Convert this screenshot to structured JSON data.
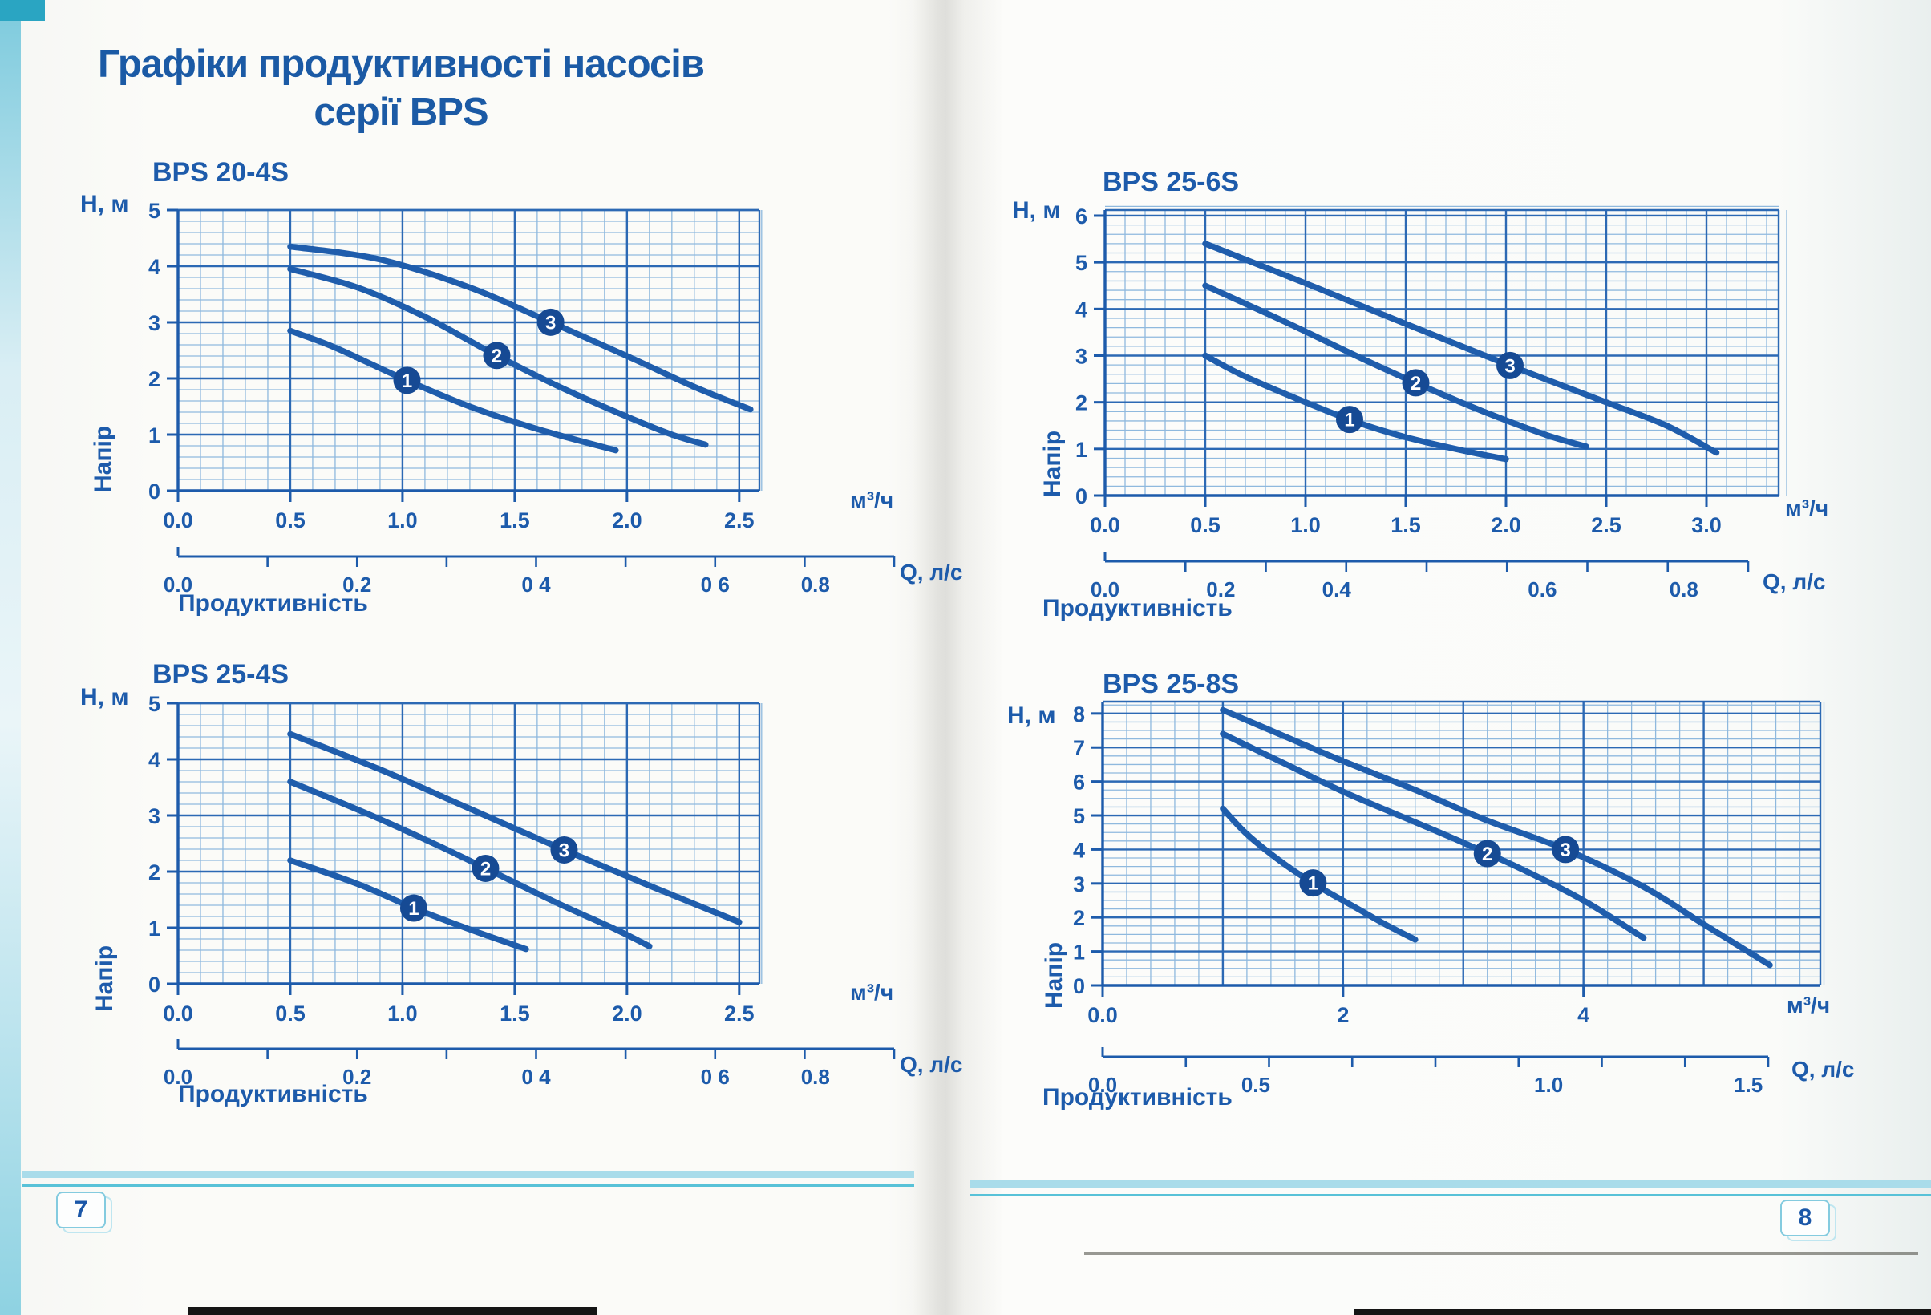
{
  "page": {
    "title_line1": "Графіки продуктивності насосів",
    "title_line2": "серії BPS",
    "left_page_number": "7",
    "right_page_number": "8"
  },
  "colors": {
    "ink_blue": "#1d5bab",
    "title_blue": "#1b5aa5",
    "curve_blue": "#1f5dac",
    "bubble_blue": "#164a94",
    "grid_minor": "#8fb9de",
    "grid_major": "#2c69b4",
    "footer_cyan": "#a9dcea",
    "footer_cyan_dark": "#58c2d8"
  },
  "chart_data": [
    {
      "type": "line",
      "title": "BPS 20-4S",
      "y_axis_label": "H, м",
      "y_axis_name": "Напір",
      "x_axis_name": "Продуктивність",
      "x_unit_label": "м³/ч",
      "q_axis_label": "Q, л/с",
      "xlim": [
        0,
        2.6
      ],
      "ylim": [
        0,
        5
      ],
      "x_tick_values": [
        0,
        0.5,
        1,
        1.5,
        2,
        2.5
      ],
      "x_tick_labels": [
        "0.0",
        "0.5",
        "1.0",
        "1.5",
        "2.0",
        "2.5"
      ],
      "y_tick_values": [
        0,
        1,
        2,
        3,
        4,
        5
      ],
      "q_tick_labels": [
        "0.0",
        "0.2",
        "0 4",
        "0 6",
        "0.8"
      ],
      "series": [
        {
          "name": "1",
          "label_x": 1.02,
          "points": [
            [
              0.5,
              2.85
            ],
            [
              0.7,
              2.55
            ],
            [
              1.0,
              2.0
            ],
            [
              1.3,
              1.5
            ],
            [
              1.6,
              1.1
            ],
            [
              1.95,
              0.72
            ]
          ]
        },
        {
          "name": "2",
          "label_x": 1.42,
          "points": [
            [
              0.5,
              3.95
            ],
            [
              0.8,
              3.62
            ],
            [
              1.1,
              3.1
            ],
            [
              1.4,
              2.45
            ],
            [
              1.7,
              1.85
            ],
            [
              2.0,
              1.32
            ],
            [
              2.2,
              1.0
            ],
            [
              2.35,
              0.82
            ]
          ]
        },
        {
          "name": "3",
          "label_x": 1.66,
          "points": [
            [
              0.5,
              4.35
            ],
            [
              0.9,
              4.12
            ],
            [
              1.3,
              3.62
            ],
            [
              1.65,
              3.02
            ],
            [
              2.0,
              2.4
            ],
            [
              2.3,
              1.85
            ],
            [
              2.55,
              1.45
            ]
          ]
        }
      ]
    },
    {
      "type": "line",
      "title": "BPS 25-6S",
      "y_axis_label": "H, м",
      "y_axis_name": "Напір",
      "x_axis_name": "Продуктивність",
      "x_unit_label": "м³/ч",
      "q_axis_label": "Q, л/с",
      "xlim": [
        0,
        3.4
      ],
      "ylim": [
        0,
        6
      ],
      "x_tick_values": [
        0,
        0.5,
        1,
        1.5,
        2,
        2.5,
        3
      ],
      "x_tick_labels": [
        "0.0",
        "0.5",
        "1.0",
        "1.5",
        "2.0",
        "2.5",
        "3.0"
      ],
      "y_tick_values": [
        0,
        1,
        2,
        3,
        4,
        5,
        6
      ],
      "q_tick_labels": [
        "0.0",
        "0.2",
        "0.4",
        "0.6",
        "0.8"
      ],
      "series": [
        {
          "name": "1",
          "label_x": 1.22,
          "points": [
            [
              0.5,
              3.0
            ],
            [
              0.7,
              2.55
            ],
            [
              1.0,
              2.0
            ],
            [
              1.25,
              1.58
            ],
            [
              1.5,
              1.25
            ],
            [
              1.8,
              0.95
            ],
            [
              2.0,
              0.78
            ]
          ]
        },
        {
          "name": "2",
          "label_x": 1.55,
          "points": [
            [
              0.5,
              4.5
            ],
            [
              0.9,
              3.72
            ],
            [
              1.3,
              2.9
            ],
            [
              1.6,
              2.32
            ],
            [
              1.9,
              1.78
            ],
            [
              2.2,
              1.3
            ],
            [
              2.4,
              1.05
            ]
          ]
        },
        {
          "name": "3",
          "label_x": 2.02,
          "points": [
            [
              0.5,
              5.4
            ],
            [
              1.0,
              4.55
            ],
            [
              1.5,
              3.68
            ],
            [
              2.0,
              2.82
            ],
            [
              2.5,
              2.0
            ],
            [
              2.8,
              1.5
            ],
            [
              3.05,
              0.92
            ]
          ]
        }
      ]
    },
    {
      "type": "line",
      "title": "BPS 25-4S",
      "y_axis_label": "H, м",
      "y_axis_name": "Напір",
      "x_axis_name": "Продуктивність",
      "x_unit_label": "м³/ч",
      "q_axis_label": "Q, л/с",
      "xlim": [
        0,
        2.6
      ],
      "ylim": [
        0,
        5
      ],
      "x_tick_values": [
        0,
        0.5,
        1,
        1.5,
        2,
        2.5
      ],
      "x_tick_labels": [
        "0.0",
        "0.5",
        "1.0",
        "1.5",
        "2.0",
        "2.5"
      ],
      "y_tick_values": [
        0,
        1,
        2,
        3,
        4,
        5
      ],
      "q_tick_labels": [
        "0.0",
        "0.2",
        "0 4",
        "0 6",
        "0.8"
      ],
      "series": [
        {
          "name": "1",
          "label_x": 1.05,
          "points": [
            [
              0.5,
              2.2
            ],
            [
              0.8,
              1.78
            ],
            [
              1.05,
              1.35
            ],
            [
              1.3,
              0.97
            ],
            [
              1.55,
              0.62
            ]
          ]
        },
        {
          "name": "2",
          "label_x": 1.37,
          "points": [
            [
              0.5,
              3.6
            ],
            [
              0.85,
              3.02
            ],
            [
              1.15,
              2.48
            ],
            [
              1.4,
              2.0
            ],
            [
              1.7,
              1.42
            ],
            [
              1.95,
              0.97
            ],
            [
              2.1,
              0.67
            ]
          ]
        },
        {
          "name": "3",
          "label_x": 1.72,
          "points": [
            [
              0.5,
              4.45
            ],
            [
              0.9,
              3.82
            ],
            [
              1.3,
              3.12
            ],
            [
              1.7,
              2.42
            ],
            [
              2.1,
              1.75
            ],
            [
              2.5,
              1.1
            ]
          ]
        }
      ]
    },
    {
      "type": "line",
      "title": "BPS 25-8S",
      "y_axis_label": "H, м",
      "y_axis_name": "Напір",
      "x_axis_name": "Продуктивність",
      "x_unit_label": "м³/ч",
      "q_axis_label": "Q, л/с",
      "xlim": [
        0,
        6
      ],
      "ylim": [
        0,
        8
      ],
      "x_tick_values": [
        0,
        2,
        4
      ],
      "x_tick_labels": [
        "0.0",
        "2",
        "4"
      ],
      "y_tick_values": [
        0,
        1,
        2,
        3,
        4,
        5,
        6,
        7,
        8
      ],
      "q_tick_labels": [
        "0.0",
        "0.5",
        "1.0",
        "1.5"
      ],
      "series": [
        {
          "name": "1",
          "label_x": 1.75,
          "points": [
            [
              1.0,
              5.2
            ],
            [
              1.2,
              4.45
            ],
            [
              1.5,
              3.6
            ],
            [
              1.8,
              2.9
            ],
            [
              2.1,
              2.3
            ],
            [
              2.35,
              1.8
            ],
            [
              2.6,
              1.35
            ]
          ]
        },
        {
          "name": "2",
          "label_x": 3.2,
          "points": [
            [
              1.0,
              7.4
            ],
            [
              1.5,
              6.55
            ],
            [
              2.0,
              5.7
            ],
            [
              2.5,
              4.95
            ],
            [
              3.0,
              4.2
            ],
            [
              3.5,
              3.4
            ],
            [
              4.0,
              2.5
            ],
            [
              4.5,
              1.4
            ]
          ]
        },
        {
          "name": "3",
          "label_x": 3.85,
          "points": [
            [
              1.0,
              8.1
            ],
            [
              1.5,
              7.35
            ],
            [
              2.0,
              6.6
            ],
            [
              2.6,
              5.75
            ],
            [
              3.2,
              4.85
            ],
            [
              3.85,
              4.0
            ],
            [
              4.5,
              2.9
            ],
            [
              5.0,
              1.8
            ],
            [
              5.55,
              0.6
            ]
          ]
        }
      ]
    }
  ]
}
